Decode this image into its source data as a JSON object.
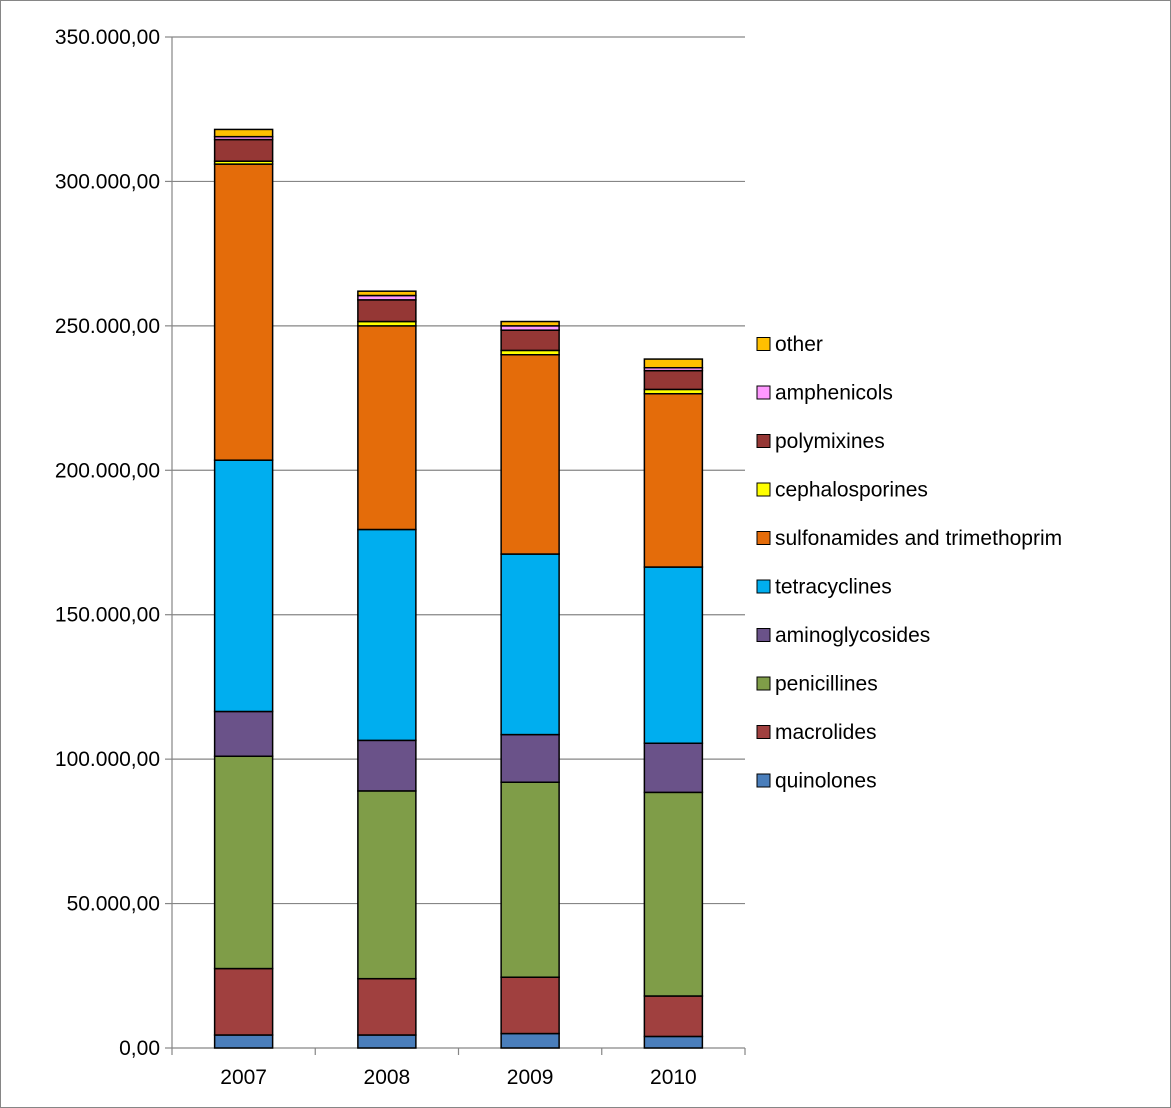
{
  "chart_data": {
    "type": "bar",
    "stacked": true,
    "title": "",
    "xlabel": "",
    "ylabel": "",
    "categories": [
      "2007",
      "2008",
      "2009",
      "2010"
    ],
    "ylim": [
      0,
      350000
    ],
    "y_ticks": [
      0,
      50000,
      100000,
      150000,
      200000,
      250000,
      300000,
      350000
    ],
    "y_tick_labels": [
      "0,00",
      "50.000,00",
      "100.000,00",
      "150.000,00",
      "200.000,00",
      "250.000,00",
      "300.000,00",
      "350.000,00"
    ],
    "grid": true,
    "legend_position": "right",
    "series": [
      {
        "name": "quinolones",
        "color": "#4A7EBB",
        "values": [
          4500,
          4500,
          5000,
          4000
        ]
      },
      {
        "name": "macrolides",
        "color": "#A0403F",
        "values": [
          23000,
          19500,
          19500,
          14000
        ]
      },
      {
        "name": "penicillines",
        "color": "#7F9D48",
        "values": [
          73500,
          65000,
          67500,
          70500
        ]
      },
      {
        "name": "aminoglycosides",
        "color": "#6A5289",
        "values": [
          15500,
          17500,
          16500,
          17000
        ]
      },
      {
        "name": "tetracyclines",
        "color": "#00AEEF",
        "values": [
          87000,
          73000,
          62500,
          61000
        ]
      },
      {
        "name": "sulfonamides and trimethoprim",
        "color": "#E46C0A",
        "values": [
          102500,
          70500,
          69000,
          60000
        ]
      },
      {
        "name": "cephalosporines",
        "color": "#FFFF00",
        "values": [
          1000,
          1500,
          1500,
          1500
        ]
      },
      {
        "name": "polymixines",
        "color": "#953735",
        "values": [
          7500,
          7500,
          7000,
          6500
        ]
      },
      {
        "name": "amphenicols",
        "color": "#FF99FF",
        "values": [
          1000,
          1500,
          1500,
          1000
        ]
      },
      {
        "name": "other",
        "color": "#FFC000",
        "values": [
          2500,
          1500,
          1500,
          3000
        ]
      }
    ]
  }
}
